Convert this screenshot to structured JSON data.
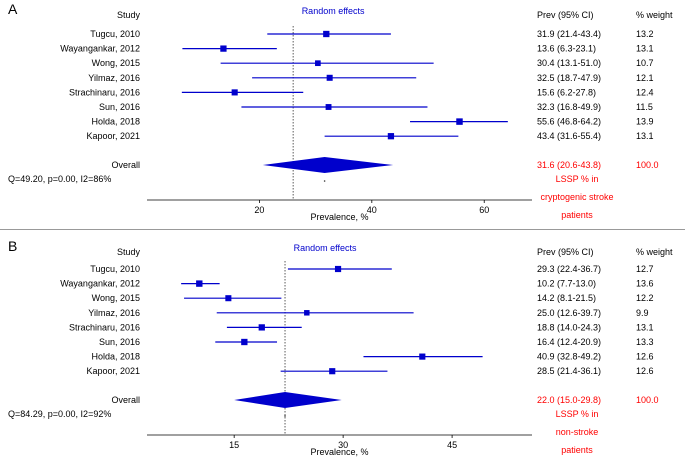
{
  "colors": {
    "marker": "#0000cc",
    "highlight": "#ff0000",
    "text": "#000000",
    "divider": "#999999"
  },
  "chart_data": [
    {
      "type": "forest",
      "panel_label": "A",
      "title": "Random effects",
      "column_headers": {
        "study": "Study",
        "prev": "Prev (95% CI)",
        "weight": "% weight"
      },
      "xlabel": "Prevalence, %",
      "xlim": [
        0,
        68.5
      ],
      "xticks": [
        20,
        40,
        60
      ],
      "reference_line": 26,
      "studies": [
        {
          "name": "Tugcu, 2010",
          "est": 31.9,
          "lo": 21.4,
          "hi": 43.4,
          "ci_text": "31.9 (21.4-43.4)",
          "weight": 13.2,
          "weight_text": "13.2"
        },
        {
          "name": "Wayangankar, 2012",
          "est": 13.6,
          "lo": 6.3,
          "hi": 23.1,
          "ci_text": "13.6 (6.3-23.1)",
          "weight": 13.1,
          "weight_text": "13.1"
        },
        {
          "name": "Wong, 2015",
          "est": 30.4,
          "lo": 13.1,
          "hi": 51.0,
          "ci_text": "30.4 (13.1-51.0)",
          "weight": 10.7,
          "weight_text": "10.7"
        },
        {
          "name": "Yilmaz, 2016",
          "est": 32.5,
          "lo": 18.7,
          "hi": 47.9,
          "ci_text": "32.5 (18.7-47.9)",
          "weight": 12.1,
          "weight_text": "12.1"
        },
        {
          "name": "Strachinaru, 2016",
          "est": 15.6,
          "lo": 6.2,
          "hi": 27.8,
          "ci_text": "15.6 (6.2-27.8)",
          "weight": 12.4,
          "weight_text": "12.4"
        },
        {
          "name": "Sun, 2016",
          "est": 32.3,
          "lo": 16.8,
          "hi": 49.9,
          "ci_text": "32.3 (16.8-49.9)",
          "weight": 11.5,
          "weight_text": "11.5"
        },
        {
          "name": "Holda, 2018",
          "est": 55.6,
          "lo": 46.8,
          "hi": 64.2,
          "ci_text": "55.6 (46.8-64.2)",
          "weight": 13.9,
          "weight_text": "13.9"
        },
        {
          "name": "Kapoor, 2021",
          "est": 43.4,
          "lo": 31.6,
          "hi": 55.4,
          "ci_text": "43.4 (31.6-55.4)",
          "weight": 13.1,
          "weight_text": "13.1"
        }
      ],
      "overall": {
        "name": "Overall",
        "est": 31.6,
        "lo": 20.6,
        "hi": 43.8,
        "ci_text": "31.6 (20.6-43.8)",
        "weight_text": "100.0"
      },
      "heterogeneity": "Q=49.20, p=0.00, I2=86%",
      "annotation_lines": [
        "LSSP % in",
        "cryptogenic stroke",
        "patients"
      ]
    },
    {
      "type": "forest",
      "panel_label": "B",
      "title": "Random effects",
      "column_headers": {
        "study": "Study",
        "prev": "Prev (95% CI)",
        "weight": "% weight"
      },
      "xlabel": "Prevalence, %",
      "xlim": [
        3,
        56
      ],
      "xticks": [
        15,
        30,
        45
      ],
      "reference_line": 22,
      "studies": [
        {
          "name": "Tugcu, 2010",
          "est": 29.3,
          "lo": 22.4,
          "hi": 36.7,
          "ci_text": "29.3 (22.4-36.7)",
          "weight": 12.7,
          "weight_text": "12.7"
        },
        {
          "name": "Wayangankar, 2012",
          "est": 10.2,
          "lo": 7.7,
          "hi": 13.0,
          "ci_text": "10.2 (7.7-13.0)",
          "weight": 13.6,
          "weight_text": "13.6"
        },
        {
          "name": "Wong, 2015",
          "est": 14.2,
          "lo": 8.1,
          "hi": 21.5,
          "ci_text": "14.2 (8.1-21.5)",
          "weight": 12.2,
          "weight_text": "12.2"
        },
        {
          "name": "Yilmaz, 2016",
          "est": 25.0,
          "lo": 12.6,
          "hi": 39.7,
          "ci_text": "25.0 (12.6-39.7)",
          "weight": 9.9,
          "weight_text": "9.9"
        },
        {
          "name": "Strachinaru, 2016",
          "est": 18.8,
          "lo": 14.0,
          "hi": 24.3,
          "ci_text": "18.8 (14.0-24.3)",
          "weight": 13.1,
          "weight_text": "13.1"
        },
        {
          "name": "Sun, 2016",
          "est": 16.4,
          "lo": 12.4,
          "hi": 20.9,
          "ci_text": "16.4 (12.4-20.9)",
          "weight": 13.3,
          "weight_text": "13.3"
        },
        {
          "name": "Holda, 2018",
          "est": 40.9,
          "lo": 32.8,
          "hi": 49.2,
          "ci_text": "40.9 (32.8-49.2)",
          "weight": 12.6,
          "weight_text": "12.6"
        },
        {
          "name": "Kapoor, 2021",
          "est": 28.5,
          "lo": 21.4,
          "hi": 36.1,
          "ci_text": "28.5 (21.4-36.1)",
          "weight": 12.6,
          "weight_text": "12.6"
        }
      ],
      "overall": {
        "name": "Overall",
        "est": 22.0,
        "lo": 15.0,
        "hi": 29.8,
        "ci_text": "22.0 (15.0-29.8)",
        "weight_text": "100.0"
      },
      "heterogeneity": "Q=84.29, p=0.00, I2=92%",
      "annotation_lines": [
        "LSSP % in",
        "non-stroke",
        "patients"
      ]
    }
  ]
}
